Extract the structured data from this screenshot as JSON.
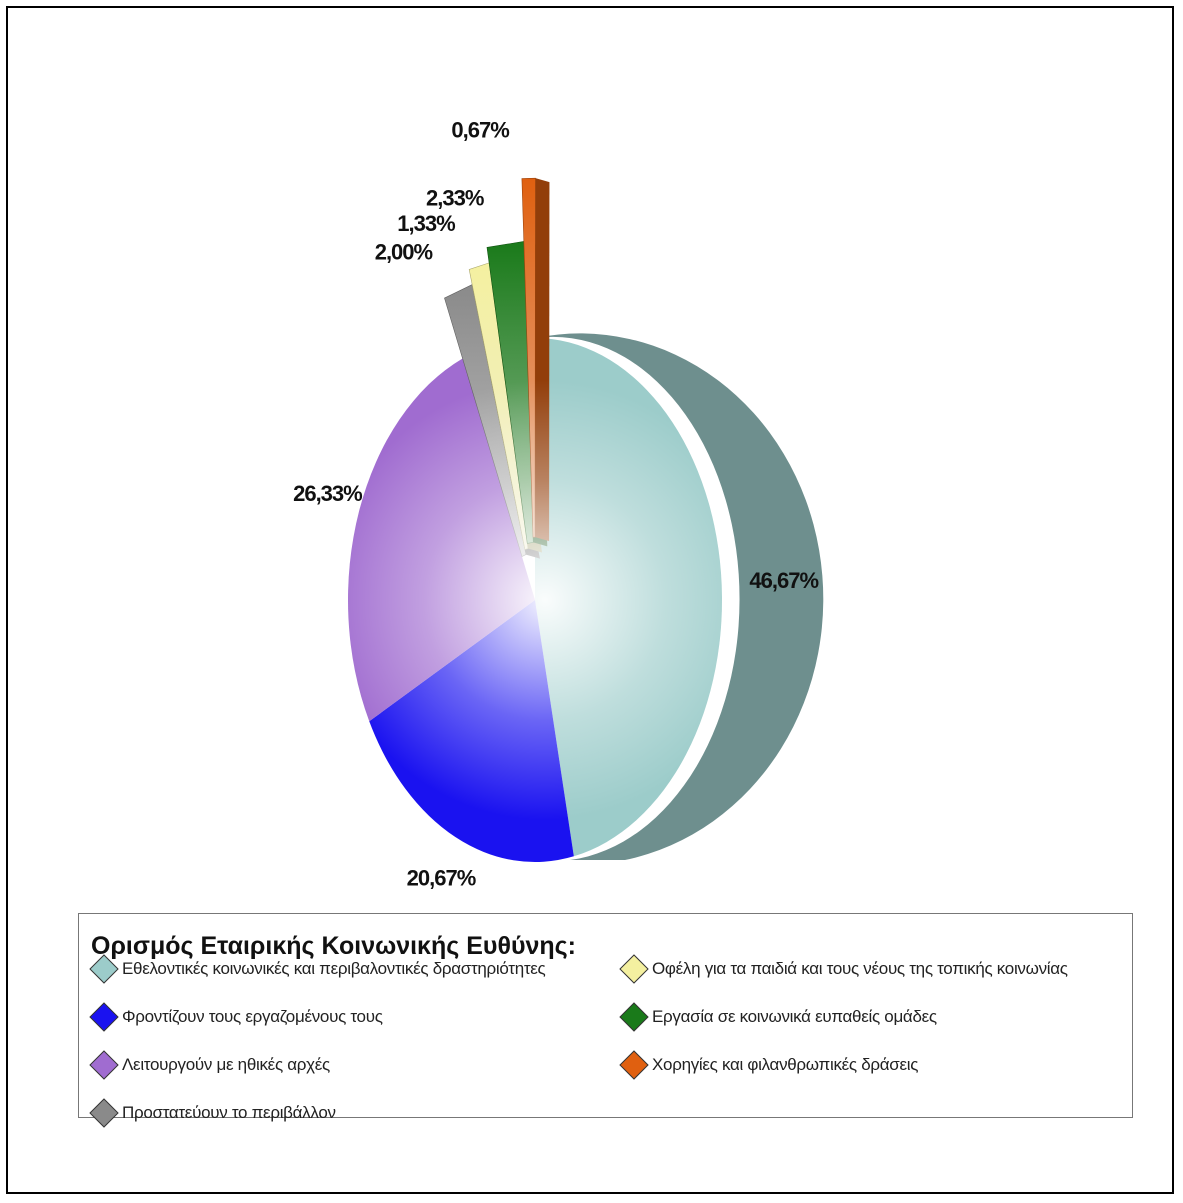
{
  "chart_data": {
    "type": "pie",
    "labels": [
      "Εθελοντικές κοινωνικές και περιβαλοντικές δραστηριότητες",
      "Φροντίζουν τους εργαζομένους τους",
      "Λειτουργούν με ηθικές αρχές",
      "Προστατεύουν το περιβάλλον",
      "Οφέλη για τα παιδιά και τους νέους της τοπικής κοινωνίας",
      "Εργασία σε κοινωνικά ευπαθείς ομάδες",
      "Χορηγίες και φιλανθρωπικές δράσεις"
    ],
    "values": [
      46.67,
      20.67,
      26.33,
      2.0,
      1.33,
      2.33,
      0.67
    ],
    "data_labels": [
      "46,67%",
      "20,67%",
      "26,33%",
      "2,00%",
      "1,33%",
      "2,33%",
      "0,67%"
    ],
    "colors": [
      "#9cccca",
      "#1a12f0",
      "#a06cd0",
      "#8a8a8a",
      "#f4f0a0",
      "#1a7a1a",
      "#e06010"
    ],
    "legend_title": "Ορισμός Εταιρικής Κοινωνικής Ευθύνης:",
    "legend_position": "bottom"
  }
}
